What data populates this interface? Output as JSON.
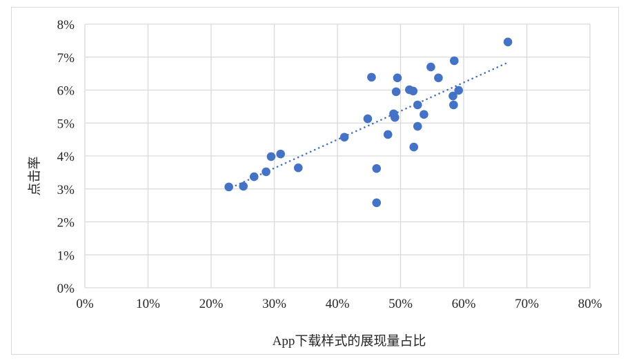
{
  "chart_data": {
    "type": "scatter",
    "title": "",
    "xlabel": "App下载样式的展现量占比",
    "ylabel": "点击率",
    "xlim": [
      0,
      80
    ],
    "ylim": [
      0,
      8
    ],
    "x_ticks": [
      "0%",
      "10%",
      "20%",
      "30%",
      "40%",
      "50%",
      "60%",
      "70%",
      "80%"
    ],
    "y_ticks": [
      "0%",
      "1%",
      "2%",
      "3%",
      "4%",
      "5%",
      "6%",
      "7%",
      "8%"
    ],
    "grid": true,
    "legend": null,
    "marker_color": "#4472C4",
    "series": [
      {
        "name": "点击率",
        "points": [
          [
            22.8,
            3.06
          ],
          [
            25.1,
            3.08
          ],
          [
            26.8,
            3.37
          ],
          [
            28.7,
            3.52
          ],
          [
            29.5,
            3.98
          ],
          [
            31.0,
            4.06
          ],
          [
            33.8,
            3.64
          ],
          [
            41.1,
            4.57
          ],
          [
            44.8,
            5.13
          ],
          [
            45.4,
            6.39
          ],
          [
            46.2,
            3.62
          ],
          [
            46.2,
            2.58
          ],
          [
            48.0,
            4.65
          ],
          [
            48.9,
            5.28
          ],
          [
            49.1,
            5.17
          ],
          [
            49.3,
            5.95
          ],
          [
            49.5,
            6.37
          ],
          [
            51.4,
            6.01
          ],
          [
            52.0,
            5.97
          ],
          [
            52.1,
            4.27
          ],
          [
            52.7,
            5.55
          ],
          [
            52.7,
            4.9
          ],
          [
            53.7,
            5.26
          ],
          [
            54.8,
            6.7
          ],
          [
            56.0,
            6.37
          ],
          [
            58.3,
            5.82
          ],
          [
            58.4,
            5.55
          ],
          [
            58.5,
            6.89
          ],
          [
            59.2,
            5.99
          ],
          [
            67.0,
            7.46
          ]
        ]
      }
    ],
    "trendline": {
      "type": "linear",
      "style": "dotted",
      "color": "#4472C4",
      "start": [
        22.6,
        2.99
      ],
      "end": [
        66.7,
        6.81
      ]
    }
  }
}
